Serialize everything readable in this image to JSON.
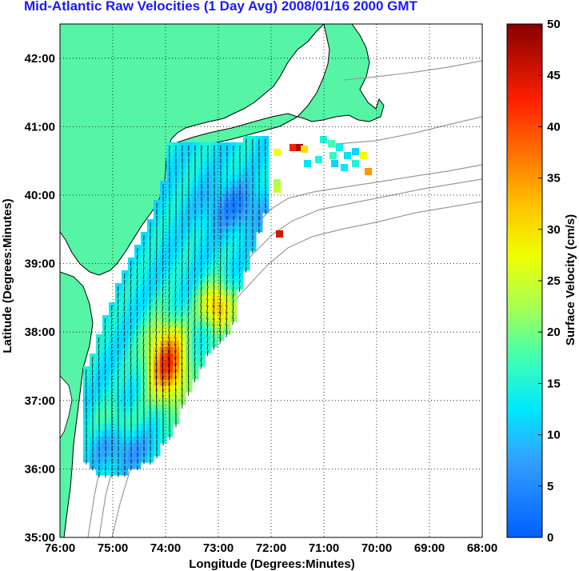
{
  "title": "Mid-Atlantic Raw Velocities (1 Day Avg) 2008/01/16 2000 GMT",
  "map": {
    "xlabel": "Longitude (Degrees:Minutes)",
    "ylabel": "Latitude (Degrees:Minutes)",
    "x_ticks": [
      "76:00",
      "75:00",
      "74:00",
      "73:00",
      "72:00",
      "71:00",
      "70:00",
      "69:00",
      "68:00"
    ],
    "y_ticks": [
      "35:00",
      "36:00",
      "37:00",
      "38:00",
      "39:00",
      "40:00",
      "41:00",
      "42:00"
    ],
    "lon_range": [
      -76,
      -68
    ],
    "lat_range": [
      35,
      42.5
    ],
    "grid": "dotted",
    "land_color": "#55f5a5",
    "coast_line_color": "#000000",
    "bathymetry_color": "#9a9a9a"
  },
  "colorbar": {
    "label": "Surface Velocity (cm/s)",
    "ticks": [
      "0",
      "5",
      "10",
      "15",
      "20",
      "25",
      "30",
      "35",
      "40",
      "45",
      "50"
    ],
    "range": [
      0,
      50
    ],
    "colormap": "jet"
  }
}
